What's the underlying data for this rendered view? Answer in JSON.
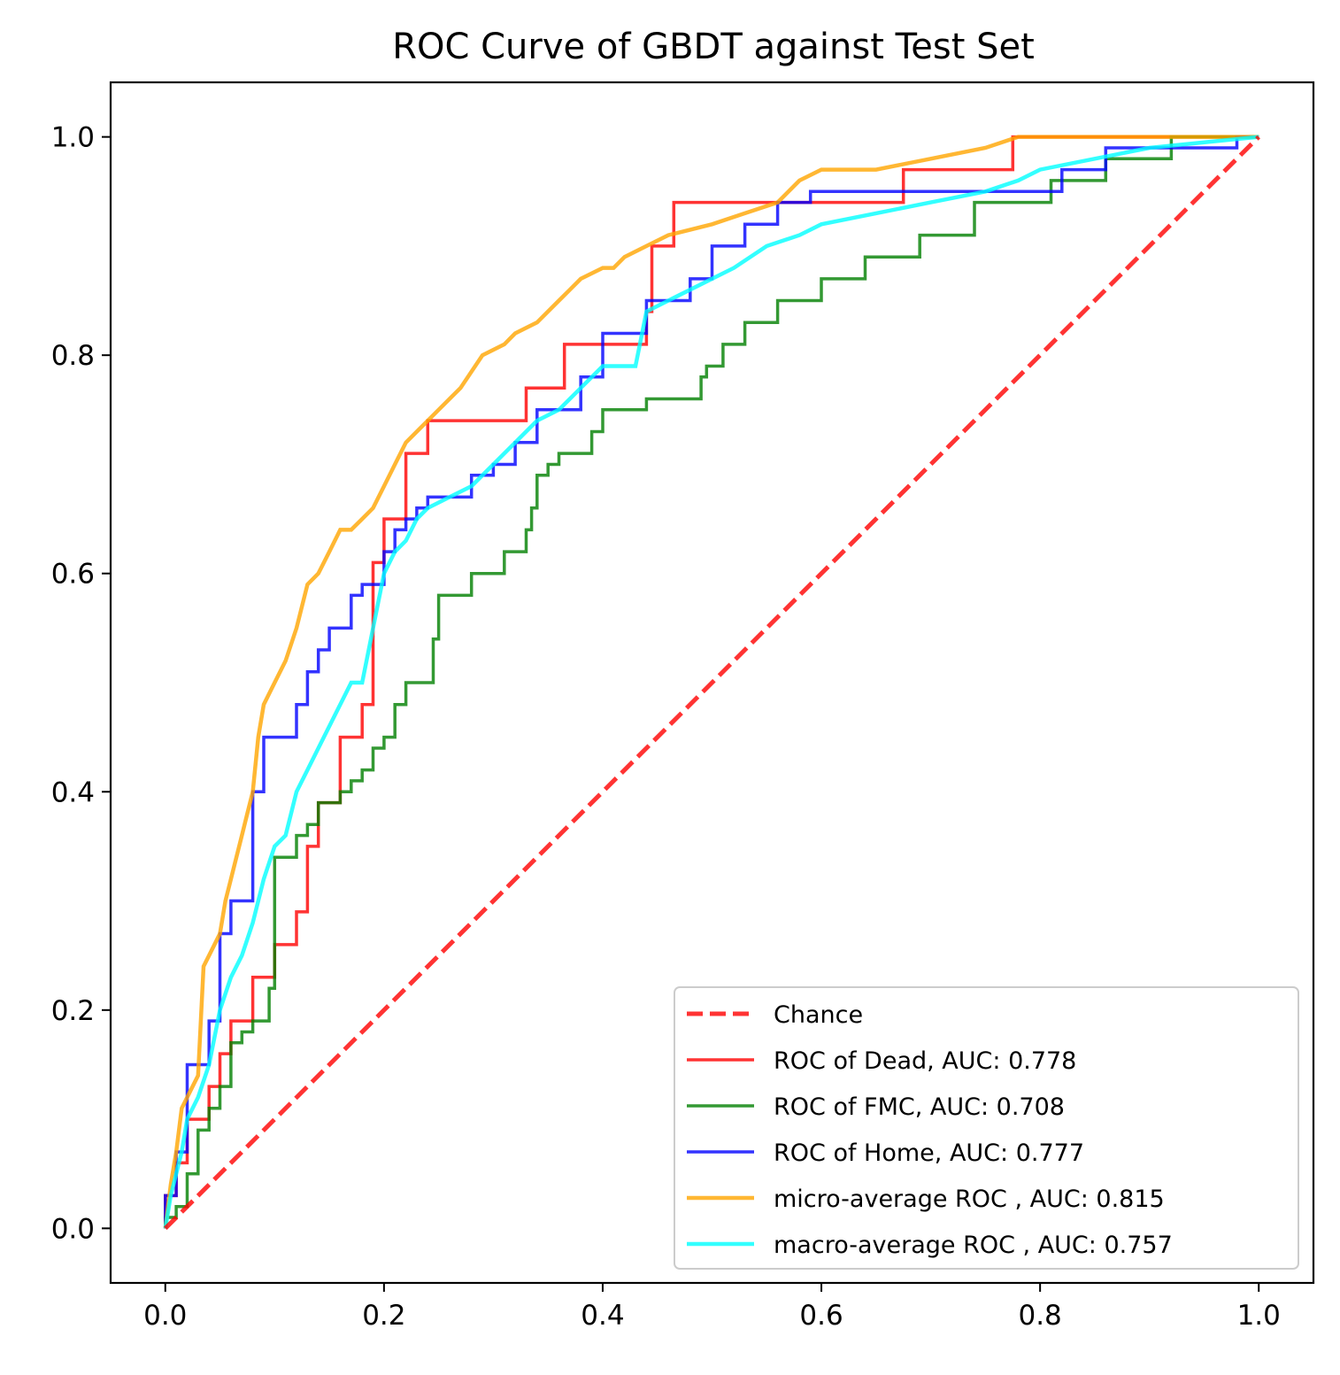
{
  "chart_data": {
    "type": "line",
    "title": "ROC Curve of GBDT against Test Set",
    "xlabel": "",
    "ylabel": "",
    "xlim": [
      -0.05,
      1.05
    ],
    "ylim": [
      -0.05,
      1.05
    ],
    "xticks": [
      0.0,
      0.2,
      0.4,
      0.6,
      0.8,
      1.0
    ],
    "yticks": [
      0.0,
      0.2,
      0.4,
      0.6,
      0.8,
      1.0
    ],
    "tick_labels_x": [
      "0.0",
      "0.2",
      "0.4",
      "0.6",
      "0.8",
      "1.0"
    ],
    "tick_labels_y": [
      "0.0",
      "0.2",
      "0.4",
      "0.6",
      "0.8",
      "1.0"
    ],
    "grid": false,
    "legend_position": "lower-right",
    "series": [
      {
        "name": "Chance",
        "color": "#ff0000",
        "dashed": true,
        "x": [
          0.0,
          1.0
        ],
        "y": [
          0.0,
          1.0
        ]
      },
      {
        "name": "ROC of Dead, AUC: 0.778",
        "color": "#ff0000",
        "x": [
          0.0,
          0.0,
          0.01,
          0.01,
          0.02,
          0.02,
          0.04,
          0.04,
          0.05,
          0.05,
          0.06,
          0.06,
          0.08,
          0.08,
          0.1,
          0.1,
          0.12,
          0.12,
          0.13,
          0.13,
          0.14,
          0.14,
          0.16,
          0.16,
          0.18,
          0.18,
          0.19,
          0.19,
          0.2,
          0.2,
          0.22,
          0.22,
          0.24,
          0.24,
          0.33,
          0.33,
          0.365,
          0.365,
          0.44,
          0.44,
          0.445,
          0.445,
          0.465,
          0.465,
          0.675,
          0.675,
          0.775,
          0.775,
          1.0
        ],
        "y": [
          0.0,
          0.03,
          0.03,
          0.06,
          0.06,
          0.1,
          0.1,
          0.13,
          0.13,
          0.16,
          0.16,
          0.19,
          0.19,
          0.23,
          0.23,
          0.26,
          0.26,
          0.29,
          0.29,
          0.35,
          0.35,
          0.39,
          0.39,
          0.45,
          0.45,
          0.48,
          0.48,
          0.61,
          0.61,
          0.65,
          0.65,
          0.71,
          0.71,
          0.74,
          0.74,
          0.77,
          0.77,
          0.81,
          0.81,
          0.84,
          0.84,
          0.9,
          0.9,
          0.94,
          0.94,
          0.97,
          0.97,
          1.0,
          1.0
        ]
      },
      {
        "name": "ROC of FMC, AUC: 0.708",
        "color": "#008000",
        "x": [
          0.0,
          0.0,
          0.01,
          0.01,
          0.02,
          0.02,
          0.03,
          0.03,
          0.04,
          0.04,
          0.05,
          0.05,
          0.06,
          0.06,
          0.07,
          0.07,
          0.08,
          0.08,
          0.095,
          0.095,
          0.1,
          0.1,
          0.12,
          0.12,
          0.13,
          0.13,
          0.14,
          0.14,
          0.16,
          0.16,
          0.17,
          0.17,
          0.18,
          0.18,
          0.19,
          0.19,
          0.2,
          0.2,
          0.21,
          0.21,
          0.22,
          0.22,
          0.245,
          0.245,
          0.25,
          0.25,
          0.28,
          0.28,
          0.31,
          0.31,
          0.33,
          0.33,
          0.335,
          0.335,
          0.34,
          0.34,
          0.35,
          0.35,
          0.36,
          0.36,
          0.39,
          0.39,
          0.4,
          0.4,
          0.44,
          0.44,
          0.49,
          0.49,
          0.495,
          0.495,
          0.51,
          0.51,
          0.53,
          0.53,
          0.56,
          0.56,
          0.6,
          0.6,
          0.64,
          0.64,
          0.69,
          0.69,
          0.74,
          0.74,
          0.81,
          0.81,
          0.86,
          0.86,
          0.92,
          0.92,
          1.0
        ],
        "y": [
          0.0,
          0.01,
          0.01,
          0.02,
          0.02,
          0.05,
          0.05,
          0.09,
          0.09,
          0.11,
          0.11,
          0.13,
          0.13,
          0.17,
          0.17,
          0.18,
          0.18,
          0.19,
          0.19,
          0.22,
          0.22,
          0.34,
          0.34,
          0.36,
          0.36,
          0.37,
          0.37,
          0.39,
          0.39,
          0.4,
          0.4,
          0.41,
          0.41,
          0.42,
          0.42,
          0.44,
          0.44,
          0.45,
          0.45,
          0.48,
          0.48,
          0.5,
          0.5,
          0.54,
          0.54,
          0.58,
          0.58,
          0.6,
          0.6,
          0.62,
          0.62,
          0.64,
          0.64,
          0.66,
          0.66,
          0.69,
          0.69,
          0.7,
          0.7,
          0.71,
          0.71,
          0.73,
          0.73,
          0.75,
          0.75,
          0.76,
          0.76,
          0.78,
          0.78,
          0.79,
          0.79,
          0.81,
          0.81,
          0.83,
          0.83,
          0.85,
          0.85,
          0.87,
          0.87,
          0.89,
          0.89,
          0.91,
          0.91,
          0.94,
          0.94,
          0.96,
          0.96,
          0.98,
          0.98,
          1.0,
          1.0
        ]
      },
      {
        "name": "ROC of Home, AUC: 0.777",
        "color": "#0000ff",
        "x": [
          0.0,
          0.0,
          0.01,
          0.01,
          0.02,
          0.02,
          0.04,
          0.04,
          0.05,
          0.05,
          0.06,
          0.06,
          0.08,
          0.08,
          0.09,
          0.09,
          0.12,
          0.12,
          0.13,
          0.13,
          0.14,
          0.14,
          0.15,
          0.15,
          0.17,
          0.17,
          0.18,
          0.18,
          0.2,
          0.2,
          0.21,
          0.21,
          0.22,
          0.22,
          0.23,
          0.23,
          0.24,
          0.24,
          0.28,
          0.28,
          0.3,
          0.3,
          0.32,
          0.32,
          0.34,
          0.34,
          0.38,
          0.38,
          0.4,
          0.4,
          0.44,
          0.44,
          0.48,
          0.48,
          0.5,
          0.5,
          0.53,
          0.53,
          0.56,
          0.56,
          0.59,
          0.59,
          0.82,
          0.82,
          0.86,
          0.86,
          0.98,
          0.98,
          1.0
        ],
        "y": [
          0.0,
          0.03,
          0.03,
          0.07,
          0.07,
          0.15,
          0.15,
          0.19,
          0.19,
          0.27,
          0.27,
          0.3,
          0.3,
          0.4,
          0.4,
          0.45,
          0.45,
          0.48,
          0.48,
          0.51,
          0.51,
          0.53,
          0.53,
          0.55,
          0.55,
          0.58,
          0.58,
          0.59,
          0.59,
          0.62,
          0.62,
          0.64,
          0.64,
          0.65,
          0.65,
          0.66,
          0.66,
          0.67,
          0.67,
          0.69,
          0.69,
          0.7,
          0.7,
          0.72,
          0.72,
          0.75,
          0.75,
          0.78,
          0.78,
          0.82,
          0.82,
          0.85,
          0.85,
          0.87,
          0.87,
          0.9,
          0.9,
          0.92,
          0.92,
          0.94,
          0.94,
          0.95,
          0.95,
          0.97,
          0.97,
          0.99,
          0.99,
          1.0,
          1.0
        ]
      },
      {
        "name": "micro-average ROC , AUC: 0.815",
        "color": "#ffa500",
        "x": [
          0.0,
          0.005,
          0.01,
          0.015,
          0.02,
          0.03,
          0.035,
          0.04,
          0.05,
          0.055,
          0.06,
          0.065,
          0.07,
          0.075,
          0.08,
          0.085,
          0.09,
          0.1,
          0.11,
          0.12,
          0.13,
          0.14,
          0.15,
          0.16,
          0.17,
          0.18,
          0.19,
          0.2,
          0.21,
          0.22,
          0.23,
          0.24,
          0.25,
          0.27,
          0.29,
          0.31,
          0.32,
          0.34,
          0.36,
          0.37,
          0.38,
          0.4,
          0.41,
          0.42,
          0.44,
          0.46,
          0.5,
          0.53,
          0.56,
          0.58,
          0.6,
          0.65,
          0.7,
          0.75,
          0.78,
          0.83,
          0.9,
          1.0
        ],
        "y": [
          0.0,
          0.04,
          0.07,
          0.11,
          0.12,
          0.14,
          0.24,
          0.25,
          0.27,
          0.3,
          0.32,
          0.34,
          0.36,
          0.38,
          0.4,
          0.45,
          0.48,
          0.5,
          0.52,
          0.55,
          0.59,
          0.6,
          0.62,
          0.64,
          0.64,
          0.65,
          0.66,
          0.68,
          0.7,
          0.72,
          0.73,
          0.74,
          0.75,
          0.77,
          0.8,
          0.81,
          0.82,
          0.83,
          0.85,
          0.86,
          0.87,
          0.88,
          0.88,
          0.89,
          0.9,
          0.91,
          0.92,
          0.93,
          0.94,
          0.96,
          0.97,
          0.97,
          0.98,
          0.99,
          1.0,
          1.0,
          1.0,
          1.0
        ]
      },
      {
        "name": "macro-average ROC , AUC: 0.757",
        "color": "#00ffff",
        "x": [
          0.0,
          0.005,
          0.01,
          0.015,
          0.02,
          0.03,
          0.04,
          0.05,
          0.06,
          0.07,
          0.08,
          0.09,
          0.1,
          0.11,
          0.12,
          0.13,
          0.14,
          0.15,
          0.16,
          0.17,
          0.18,
          0.19,
          0.2,
          0.21,
          0.22,
          0.23,
          0.24,
          0.26,
          0.28,
          0.3,
          0.32,
          0.34,
          0.36,
          0.38,
          0.4,
          0.43,
          0.44,
          0.46,
          0.48,
          0.5,
          0.52,
          0.55,
          0.58,
          0.6,
          0.65,
          0.7,
          0.75,
          0.78,
          0.8,
          0.85,
          0.9,
          1.0
        ],
        "y": [
          0.0,
          0.03,
          0.05,
          0.07,
          0.1,
          0.12,
          0.15,
          0.2,
          0.23,
          0.25,
          0.28,
          0.32,
          0.35,
          0.36,
          0.4,
          0.42,
          0.44,
          0.46,
          0.48,
          0.5,
          0.5,
          0.55,
          0.6,
          0.62,
          0.63,
          0.65,
          0.66,
          0.67,
          0.68,
          0.7,
          0.72,
          0.74,
          0.75,
          0.77,
          0.79,
          0.79,
          0.84,
          0.85,
          0.86,
          0.87,
          0.88,
          0.9,
          0.91,
          0.92,
          0.93,
          0.94,
          0.95,
          0.96,
          0.97,
          0.98,
          0.99,
          1.0
        ]
      }
    ]
  }
}
